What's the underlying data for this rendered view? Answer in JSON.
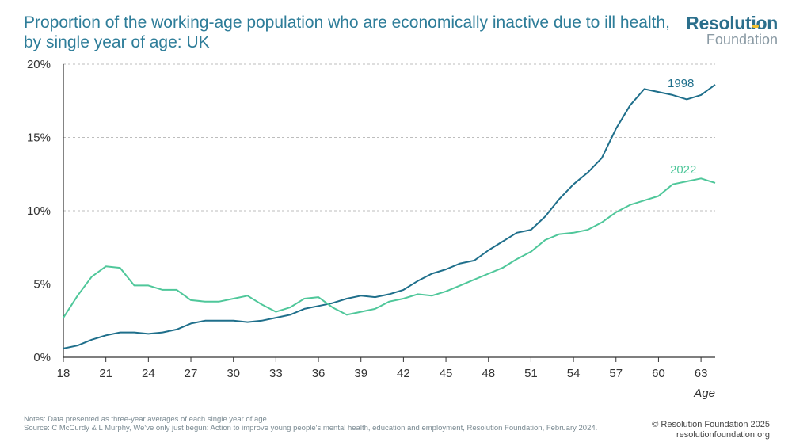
{
  "header": {
    "title": "Proportion of the working-age population who are economically inactive due to ill health, by single year of age: UK",
    "logo_top": "Resolution",
    "logo_bottom": "Foundation"
  },
  "colors": {
    "series_1998": "#1f6f8b",
    "series_2022": "#4fc79a",
    "grid": "#bdbdbd"
  },
  "chart_data": {
    "type": "line",
    "title": "Proportion of the working-age population who are economically inactive due to ill health, by single year of age: UK",
    "xlabel": "Age",
    "ylabel": "",
    "xlim": [
      18,
      64
    ],
    "ylim": [
      0,
      20
    ],
    "x_ticks": [
      18,
      21,
      24,
      27,
      30,
      33,
      36,
      39,
      42,
      45,
      48,
      51,
      54,
      57,
      60,
      63
    ],
    "y_ticks": [
      0,
      5,
      10,
      15,
      20
    ],
    "y_tick_labels": [
      "0%",
      "5%",
      "10%",
      "15%",
      "20%"
    ],
    "grid": "horizontal dashed",
    "x": [
      18,
      19,
      20,
      21,
      22,
      23,
      24,
      25,
      26,
      27,
      28,
      29,
      30,
      31,
      32,
      33,
      34,
      35,
      36,
      37,
      38,
      39,
      40,
      41,
      42,
      43,
      44,
      45,
      46,
      47,
      48,
      49,
      50,
      51,
      52,
      53,
      54,
      55,
      56,
      57,
      58,
      59,
      60,
      61,
      62,
      63,
      64
    ],
    "series": [
      {
        "name": "1998",
        "values": [
          0.6,
          0.8,
          1.2,
          1.5,
          1.7,
          1.7,
          1.6,
          1.7,
          1.9,
          2.3,
          2.5,
          2.5,
          2.5,
          2.4,
          2.5,
          2.7,
          2.9,
          3.3,
          3.5,
          3.7,
          4.0,
          4.2,
          4.1,
          4.3,
          4.6,
          5.2,
          5.7,
          6.0,
          6.4,
          6.6,
          7.3,
          7.9,
          8.5,
          8.7,
          9.6,
          10.8,
          11.8,
          12.6,
          13.6,
          15.6,
          17.2,
          18.3,
          18.1,
          17.9,
          17.6,
          17.9,
          18.6
        ]
      },
      {
        "name": "2022",
        "values": [
          2.7,
          4.2,
          5.5,
          6.2,
          6.1,
          4.9,
          4.9,
          4.6,
          4.6,
          3.9,
          3.8,
          3.8,
          4.0,
          4.2,
          3.6,
          3.1,
          3.4,
          4.0,
          4.1,
          3.4,
          2.9,
          3.1,
          3.3,
          3.8,
          4.0,
          4.3,
          4.2,
          4.5,
          4.9,
          5.3,
          5.7,
          6.1,
          6.7,
          7.2,
          8.0,
          8.4,
          8.5,
          8.7,
          9.2,
          9.9,
          10.4,
          10.7,
          11.0,
          11.8,
          12.0,
          12.2,
          11.9
        ]
      }
    ]
  },
  "footer": {
    "notes_line1": "Notes: Data presented as three-year averages of each single year of age.",
    "notes_line2": "Source: C McCurdy & L Murphy, We've only just begun: Action to improve young people's mental health, education and employment, Resolution Foundation, February 2024.",
    "copyright": "© Resolution Foundation 2025",
    "website": "resolutionfoundation.org"
  }
}
